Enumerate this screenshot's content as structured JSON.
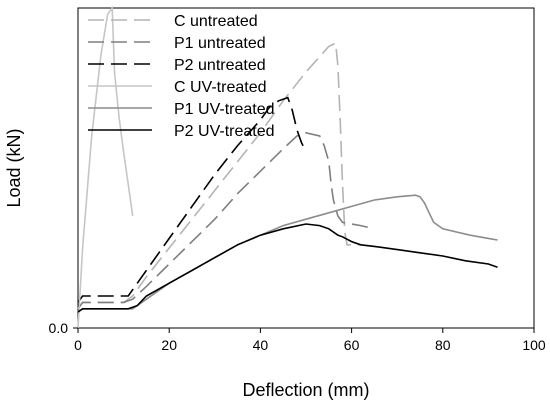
{
  "chart_data": {
    "type": "line",
    "title": "",
    "xlabel": "Deflection (mm)",
    "ylabel": "Load (kN)",
    "xlim": [
      0,
      100
    ],
    "ylim": [
      0,
      1.0
    ],
    "x_ticks": [
      0,
      20,
      40,
      60,
      80,
      100
    ],
    "y_ticks": [
      {
        "value": 0.0,
        "label": "0.0"
      }
    ],
    "grid": false,
    "legend_position": "top-left",
    "series": [
      {
        "name": "C untreated",
        "color": "#b4b4b4",
        "dash": "long-dash",
        "x": [
          0,
          1,
          10,
          12,
          15,
          20,
          25,
          30,
          35,
          40,
          45,
          50,
          55,
          56.5,
          57,
          57.5,
          58,
          58.5,
          59,
          61,
          62
        ],
        "y": [
          0.06,
          0.08,
          0.08,
          0.1,
          0.16,
          0.25,
          0.34,
          0.43,
          0.52,
          0.61,
          0.71,
          0.8,
          0.88,
          0.89,
          0.82,
          0.65,
          0.45,
          0.3,
          0.26,
          0.26,
          0.26
        ]
      },
      {
        "name": "P1 untreated",
        "color": "#7f7f7f",
        "dash": "long-dash",
        "x": [
          0,
          1,
          10,
          12,
          15,
          20,
          25,
          30,
          35,
          40,
          45,
          48,
          50,
          53,
          54,
          55,
          55.5,
          56,
          57,
          58,
          62,
          65
        ],
        "y": [
          0.06,
          0.08,
          0.08,
          0.09,
          0.13,
          0.2,
          0.27,
          0.34,
          0.42,
          0.49,
          0.56,
          0.6,
          0.61,
          0.6,
          0.57,
          0.52,
          0.45,
          0.4,
          0.35,
          0.33,
          0.32,
          0.31
        ]
      },
      {
        "name": "P2 untreated",
        "color": "#000000",
        "dash": "long-dash",
        "x": [
          0,
          1,
          11,
          13,
          15,
          20,
          25,
          30,
          35,
          40,
          42,
          44,
          46,
          47,
          48,
          49,
          50
        ],
        "y": [
          0.08,
          0.1,
          0.1,
          0.14,
          0.18,
          0.28,
          0.38,
          0.48,
          0.57,
          0.65,
          0.69,
          0.71,
          0.72,
          0.68,
          0.62,
          0.58,
          0.55
        ]
      },
      {
        "name": "C UV-treated",
        "color": "#c6c6c6",
        "dash": "solid",
        "x": [
          0,
          1,
          3,
          5,
          6.5,
          7.5,
          8,
          9,
          10,
          11,
          12
        ],
        "y": [
          0.0,
          0.25,
          0.6,
          0.85,
          0.98,
          1.0,
          0.8,
          0.66,
          0.55,
          0.45,
          0.35
        ]
      },
      {
        "name": "P1 UV-treated",
        "color": "#8c8c8c",
        "dash": "solid",
        "x": [
          0,
          1,
          11,
          12,
          15,
          20,
          25,
          30,
          35,
          40,
          45,
          50,
          55,
          60,
          65,
          70,
          74,
          75,
          76,
          77,
          78,
          80,
          83,
          86,
          90,
          92
        ],
        "y": [
          0.05,
          0.06,
          0.06,
          0.06,
          0.09,
          0.14,
          0.18,
          0.22,
          0.26,
          0.29,
          0.32,
          0.34,
          0.36,
          0.38,
          0.4,
          0.41,
          0.415,
          0.41,
          0.39,
          0.36,
          0.33,
          0.31,
          0.3,
          0.29,
          0.28,
          0.275
        ]
      },
      {
        "name": "P2 UV-treated",
        "color": "#000000",
        "dash": "solid",
        "x": [
          0,
          1,
          11,
          13,
          15,
          20,
          25,
          30,
          35,
          40,
          45,
          50,
          53,
          55,
          57,
          58,
          60,
          62,
          65,
          70,
          75,
          80,
          85,
          90,
          92
        ],
        "y": [
          0.05,
          0.06,
          0.06,
          0.07,
          0.1,
          0.14,
          0.18,
          0.22,
          0.26,
          0.29,
          0.31,
          0.325,
          0.32,
          0.31,
          0.29,
          0.285,
          0.27,
          0.26,
          0.255,
          0.245,
          0.235,
          0.225,
          0.21,
          0.2,
          0.19
        ]
      }
    ]
  }
}
